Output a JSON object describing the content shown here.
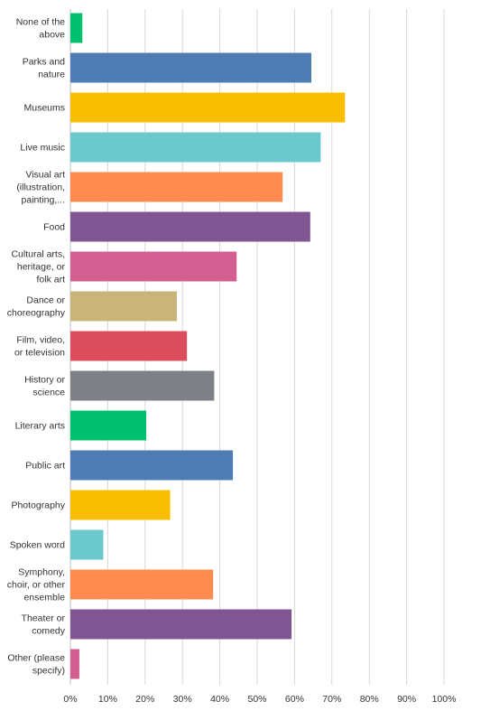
{
  "chart_data": {
    "type": "bar",
    "orientation": "horizontal",
    "title": "",
    "xlabel": "",
    "ylabel": "",
    "grid": true,
    "xlim": [
      0,
      100
    ],
    "x_ticks": [
      "0%",
      "10%",
      "20%",
      "30%",
      "40%",
      "50%",
      "60%",
      "70%",
      "80%",
      "90%",
      "100%"
    ],
    "categories": [
      [
        "None of the",
        "above"
      ],
      [
        "Parks and",
        "nature"
      ],
      [
        "Museums"
      ],
      [
        "Live music"
      ],
      [
        "Visual art",
        "(illustration,",
        "painting,..."
      ],
      [
        "Food"
      ],
      [
        "Cultural arts,",
        "heritage, or",
        "folk art"
      ],
      [
        "Dance or",
        "choreography"
      ],
      [
        "Film, video,",
        "or television"
      ],
      [
        "History or",
        "science"
      ],
      [
        "Literary arts"
      ],
      [
        "Public art"
      ],
      [
        "Photography"
      ],
      [
        "Spoken word"
      ],
      [
        "Symphony,",
        "choir, or other",
        "ensemble"
      ],
      [
        "Theater or",
        "comedy"
      ],
      [
        "Other (please",
        "specify)"
      ]
    ],
    "values": [
      3.2,
      64.5,
      73.5,
      67.0,
      56.8,
      64.2,
      44.5,
      28.5,
      31.2,
      38.5,
      20.3,
      43.5,
      26.7,
      8.8,
      38.2,
      59.2,
      2.4
    ],
    "colors": [
      "#00bf6f",
      "#507cb6",
      "#f9be00",
      "#6bc8cd",
      "#ff8b4f",
      "#7f5691",
      "#d25f90",
      "#c9b57a",
      "#db4d5c",
      "#7d8185",
      "#00bf6f",
      "#507cb6",
      "#f9be00",
      "#6bc8cd",
      "#ff8b4f",
      "#7f5691",
      "#d25f90"
    ]
  }
}
